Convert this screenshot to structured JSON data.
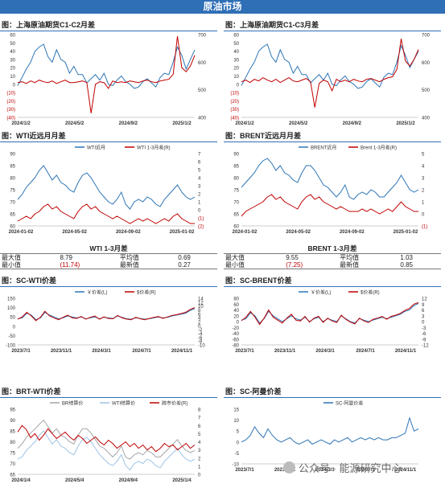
{
  "header": {
    "title": "原油市场"
  },
  "colors": {
    "blue": "#2e75b6",
    "red": "#c00000",
    "grey": "#a6a6a6",
    "lightblue": "#9dc3e6",
    "header": "#2f6fb5"
  },
  "watermark": {
    "text": "公众号 · 能源研究中心"
  },
  "stats": [
    {
      "title": "WTI 1-3月差",
      "rows": [
        {
          "l1": "最大值",
          "v1": "8.79",
          "l2": "平均值",
          "v2": "0.69"
        },
        {
          "l1": "最小值",
          "v1": "(11.74)",
          "l2": "最新值",
          "v2": "0.27"
        }
      ]
    },
    {
      "title": "BRENT 1-3月差",
      "rows": [
        {
          "l1": "最大值",
          "v1": "9.55",
          "l2": "平均值",
          "v2": "1.03"
        },
        {
          "l1": "最小值",
          "v1": "(7.25)",
          "l2": "最新值",
          "v2": "0.85"
        }
      ]
    }
  ],
  "chart_data": [
    {
      "id": "c1",
      "title": "图：上海原油期货C1-C2月差",
      "type": "line",
      "xticks": [
        "2024/1/2",
        "2024/5/2",
        "2024/9/2",
        "2025/1/2"
      ],
      "yleft": {
        "ticks": [
          "60",
          "50",
          "40",
          "30",
          "20",
          "10",
          "0",
          "(10)",
          "(20)",
          "(30)",
          "(40)"
        ],
        "range": [
          -40,
          60
        ]
      },
      "yright": {
        "ticks": [
          "700",
          "600",
          "500",
          "400"
        ],
        "range": [
          400,
          700
        ]
      },
      "series": [
        {
          "color": "blue",
          "axis": "right",
          "values": [
            515,
            545,
            575,
            600,
            640,
            655,
            665,
            620,
            600,
            645,
            610,
            600,
            560,
            585,
            555,
            555,
            525,
            540,
            555,
            535,
            560,
            520,
            515,
            535,
            550,
            530,
            520,
            505,
            510,
            530,
            540,
            525,
            510,
            545,
            560,
            555,
            600,
            655,
            625,
            575,
            610,
            645
          ]
        },
        {
          "color": "red",
          "axis": "left",
          "values": [
            2,
            3,
            1,
            4,
            2,
            5,
            3,
            2,
            4,
            1,
            3,
            5,
            2,
            2,
            3,
            4,
            2,
            -35,
            0,
            3,
            2,
            -5,
            4,
            2,
            3,
            2,
            4,
            3,
            2,
            4,
            5,
            3,
            2,
            4,
            5,
            6,
            12,
            58,
            20,
            15,
            22,
            35
          ]
        }
      ]
    },
    {
      "id": "c2",
      "title": "图：上海原油期货C1-C3月差",
      "type": "line",
      "xticks": [
        "2024/1/2",
        "2024/5/2",
        "2024/9/2",
        "2025/1/2"
      ],
      "yleft": {
        "ticks": [
          "60",
          "50",
          "40",
          "30",
          "20",
          "10",
          "0",
          "(10)",
          "(20)",
          "(30)",
          "(40)"
        ],
        "range": [
          -40,
          60
        ]
      },
      "yright": {
        "ticks": [
          "700",
          "600",
          "500",
          "400"
        ],
        "range": [
          400,
          700
        ]
      },
      "series": [
        {
          "color": "blue",
          "axis": "right",
          "values": [
            515,
            545,
            575,
            600,
            640,
            655,
            665,
            620,
            600,
            645,
            610,
            600,
            560,
            585,
            555,
            555,
            525,
            540,
            555,
            535,
            560,
            520,
            515,
            535,
            550,
            530,
            520,
            505,
            510,
            530,
            540,
            525,
            510,
            545,
            560,
            555,
            600,
            660,
            625,
            580,
            610,
            640
          ]
        },
        {
          "color": "red",
          "axis": "left",
          "values": [
            3,
            5,
            2,
            6,
            4,
            8,
            5,
            3,
            6,
            2,
            5,
            8,
            4,
            3,
            5,
            7,
            3,
            -28,
            1,
            5,
            3,
            -8,
            6,
            3,
            5,
            3,
            6,
            4,
            3,
            6,
            7,
            5,
            3,
            6,
            8,
            9,
            18,
            55,
            28,
            22,
            30,
            42
          ]
        }
      ]
    },
    {
      "id": "c3",
      "title": "图：WTI近远月月差",
      "type": "line",
      "legend": [
        "WTI近月",
        "WTI 1-3月差(R)"
      ],
      "xticks": [
        "2024-01-02",
        "2024-05-02",
        "2024-09-02",
        "2025-01-02"
      ],
      "yleft": {
        "ticks": [
          "90",
          "85",
          "80",
          "75",
          "70",
          "65",
          "60"
        ],
        "range": [
          60,
          90
        ]
      },
      "yright": {
        "ticks": [
          "7",
          "6",
          "5",
          "4",
          "3",
          "2",
          "1",
          "0",
          "(1)",
          "(2)"
        ],
        "range": [
          -2,
          7
        ]
      },
      "series": [
        {
          "color": "blue",
          "axis": "left",
          "values": [
            71,
            73,
            76,
            78,
            80,
            83,
            85,
            82,
            79,
            81,
            78,
            77,
            75,
            74,
            78,
            81,
            82,
            80,
            77,
            74,
            72,
            70,
            69,
            71,
            74,
            69,
            67,
            70,
            71,
            70,
            72,
            71,
            69,
            68,
            71,
            73,
            75,
            77,
            74,
            72,
            71,
            72
          ]
        },
        {
          "color": "red",
          "axis": "left",
          "values": [
            62,
            63,
            64,
            63,
            65,
            66,
            68,
            69,
            67,
            68,
            66,
            65,
            64,
            63,
            66,
            68,
            69,
            67,
            68,
            66,
            65,
            64,
            63,
            64,
            63,
            62,
            61,
            62,
            63,
            62,
            63,
            62,
            61,
            62,
            63,
            62,
            64,
            65,
            63,
            62,
            61,
            61
          ]
        }
      ]
    },
    {
      "id": "c4",
      "title": "图：BRENT近远月月差",
      "type": "line",
      "legend": [
        "BRENT近月",
        "Brent 1-3月差(R)"
      ],
      "xticks": [
        "2024-01-02",
        "2024-05-02",
        "2024-09-02",
        "2025-01-02"
      ],
      "yleft": {
        "ticks": [
          "90",
          "85",
          "80",
          "75",
          "70",
          "65",
          "60"
        ],
        "range": [
          60,
          90
        ]
      },
      "yright": {
        "ticks": [
          "5",
          "4",
          "3",
          "2",
          "1",
          "0",
          "(1)"
        ],
        "range": [
          -1,
          5
        ]
      },
      "series": [
        {
          "color": "blue",
          "axis": "left",
          "values": [
            76,
            78,
            80,
            82,
            85,
            87,
            88,
            86,
            83,
            85,
            82,
            81,
            79,
            78,
            82,
            85,
            85,
            83,
            80,
            77,
            76,
            74,
            72,
            74,
            77,
            72,
            71,
            73,
            74,
            73,
            75,
            74,
            72,
            72,
            74,
            76,
            78,
            81,
            78,
            75,
            74,
            75
          ]
        },
        {
          "color": "red",
          "axis": "left",
          "values": [
            64,
            66,
            67,
            68,
            69,
            70,
            72,
            73,
            71,
            72,
            70,
            69,
            68,
            67,
            70,
            72,
            73,
            71,
            72,
            70,
            69,
            68,
            67,
            68,
            67,
            66,
            66,
            66,
            67,
            66,
            67,
            66,
            65,
            66,
            67,
            66,
            68,
            70,
            68,
            67,
            66,
            66
          ]
        }
      ]
    },
    {
      "id": "c5",
      "title": "图：SC-WTI价差",
      "type": "line",
      "legend": [
        "￥价差(L)",
        "$价差(R)"
      ],
      "xticks": [
        "2023/7/1",
        "2023/11/1",
        "2024/3/1",
        "2024/7/1",
        "2024/11/1"
      ],
      "yleft": {
        "ticks": [
          "150",
          "100",
          "50",
          "0",
          "-50",
          "-100"
        ],
        "range": [
          -100,
          150
        ]
      },
      "yright": {
        "ticks": [
          "14",
          "12",
          "10",
          "8",
          "6",
          "4",
          "2",
          "0",
          "-2",
          "-4",
          "-6",
          "-8",
          "-10"
        ],
        "range": [
          -10,
          14
        ]
      },
      "series": [
        {
          "color": "blue",
          "axis": "left",
          "values": [
            40,
            45,
            70,
            60,
            35,
            45,
            75,
            60,
            50,
            40,
            45,
            55,
            50,
            45,
            50,
            40,
            45,
            50,
            40,
            48,
            45,
            42,
            55,
            48,
            40,
            38,
            45,
            42,
            38,
            40,
            45,
            50,
            45,
            48,
            55,
            60,
            65,
            70,
            85,
            95
          ]
        },
        {
          "color": "red",
          "axis": "left",
          "values": [
            38,
            50,
            75,
            55,
            30,
            48,
            80,
            55,
            45,
            35,
            48,
            60,
            45,
            42,
            52,
            38,
            48,
            55,
            38,
            50,
            42,
            40,
            58,
            45,
            38,
            35,
            48,
            40,
            35,
            42,
            48,
            52,
            42,
            50,
            58,
            62,
            68,
            75,
            90,
            100
          ]
        }
      ]
    },
    {
      "id": "c6",
      "title": "图：SC-BRENT价差",
      "type": "line",
      "legend": [
        "￥价差(L)",
        "$价差(R)"
      ],
      "xticks": [
        "2023/7/1",
        "2023/11/1",
        "2024/3/1",
        "2024/7/1",
        "2024/11/1"
      ],
      "yleft": {
        "ticks": [
          "80",
          "60",
          "40",
          "20",
          "0",
          "-20",
          "-40",
          "-60",
          "-80"
        ],
        "range": [
          -80,
          80
        ]
      },
      "yright": {
        "ticks": [
          "12",
          "9",
          "6",
          "3",
          "0",
          "-3",
          "-6",
          "-9",
          "-12"
        ],
        "range": [
          -12,
          12
        ]
      },
      "series": [
        {
          "color": "blue",
          "axis": "left",
          "values": [
            5,
            10,
            30,
            20,
            -5,
            10,
            35,
            20,
            10,
            0,
            10,
            20,
            10,
            5,
            15,
            0,
            10,
            15,
            0,
            10,
            5,
            0,
            20,
            10,
            0,
            -5,
            10,
            5,
            0,
            5,
            10,
            15,
            10,
            15,
            20,
            25,
            35,
            40,
            55,
            62
          ]
        },
        {
          "color": "red",
          "axis": "left",
          "values": [
            3,
            15,
            35,
            15,
            -10,
            12,
            40,
            15,
            5,
            -5,
            12,
            25,
            5,
            2,
            18,
            -2,
            12,
            18,
            -3,
            12,
            2,
            -3,
            22,
            8,
            -2,
            -8,
            12,
            2,
            -3,
            8,
            12,
            18,
            8,
            18,
            22,
            28,
            38,
            45,
            60,
            65
          ]
        }
      ]
    },
    {
      "id": "c7",
      "title": "图：BRT-WTI价差",
      "type": "line",
      "legend": [
        "BR结算价",
        "WTI结算价",
        "跨市价差(R)"
      ],
      "xticks": [
        "2024/1/4",
        "2024/5/4",
        "2024/9/4",
        "2025/1/4"
      ],
      "yleft": {
        "ticks": [
          "95",
          "90",
          "85",
          "80",
          "75",
          "70",
          "65"
        ],
        "range": [
          65,
          95
        ]
      },
      "yright": {
        "ticks": [
          "8",
          "7",
          "6",
          "5",
          "4",
          "3",
          "2",
          "1",
          "0"
        ],
        "range": [
          0,
          8
        ]
      },
      "series": [
        {
          "color": "grey",
          "axis": "left",
          "values": [
            77,
            79,
            82,
            84,
            86,
            88,
            90,
            87,
            84,
            86,
            83,
            82,
            80,
            79,
            83,
            86,
            86,
            84,
            81,
            78,
            77,
            75,
            73,
            75,
            78,
            73,
            72,
            74,
            75,
            74,
            76,
            75,
            73,
            73,
            75,
            77,
            79,
            81,
            78,
            76,
            75,
            76
          ]
        },
        {
          "color": "lightblue",
          "axis": "left",
          "values": [
            72,
            73,
            76,
            78,
            80,
            83,
            85,
            82,
            79,
            81,
            78,
            77,
            75,
            74,
            78,
            81,
            82,
            80,
            77,
            74,
            72,
            70,
            69,
            71,
            74,
            69,
            67,
            70,
            71,
            70,
            72,
            71,
            69,
            68,
            71,
            73,
            75,
            77,
            74,
            72,
            71,
            72
          ]
        },
        {
          "color": "red",
          "axis": "right",
          "values": [
            5.2,
            6,
            5.5,
            4.5,
            5,
            4.2,
            4.8,
            5.6,
            5,
            4.4,
            4.8,
            5.2,
            4.6,
            4.2,
            4.8,
            4.4,
            3.8,
            4.2,
            4.6,
            4,
            3.6,
            4.2,
            3.8,
            3.2,
            3.6,
            4,
            3.4,
            3.8,
            3.2,
            3.6,
            3,
            3.4,
            2.8,
            3.2,
            3.8,
            3.4,
            3.6,
            3,
            3.4,
            3.8,
            3.2,
            3.6
          ]
        }
      ]
    },
    {
      "id": "c8",
      "title": "图：SC-阿曼价差",
      "type": "line",
      "legend": [
        "SC-阿曼价差"
      ],
      "xticks": [
        "2023/7/1",
        "2023/11/1",
        "2024/3/1",
        "2024/7/1",
        "2024/11/1"
      ],
      "yleft": {
        "ticks": [
          "15",
          "10",
          "5",
          "0",
          "-5",
          "-10"
        ],
        "range": [
          -10,
          15
        ]
      },
      "yright": {
        "ticks": [],
        "range": [
          -10,
          15
        ]
      },
      "series": [
        {
          "color": "blue",
          "axis": "left",
          "values": [
            0,
            1,
            3,
            7,
            4,
            2,
            6,
            3,
            1,
            0,
            1,
            2,
            0,
            -1,
            0,
            1,
            -1,
            0,
            1,
            0,
            -1,
            1,
            0,
            1,
            2,
            0,
            1,
            2,
            1,
            2,
            1,
            2,
            1,
            1,
            2,
            2,
            3,
            4,
            11,
            5,
            6
          ]
        }
      ]
    }
  ]
}
